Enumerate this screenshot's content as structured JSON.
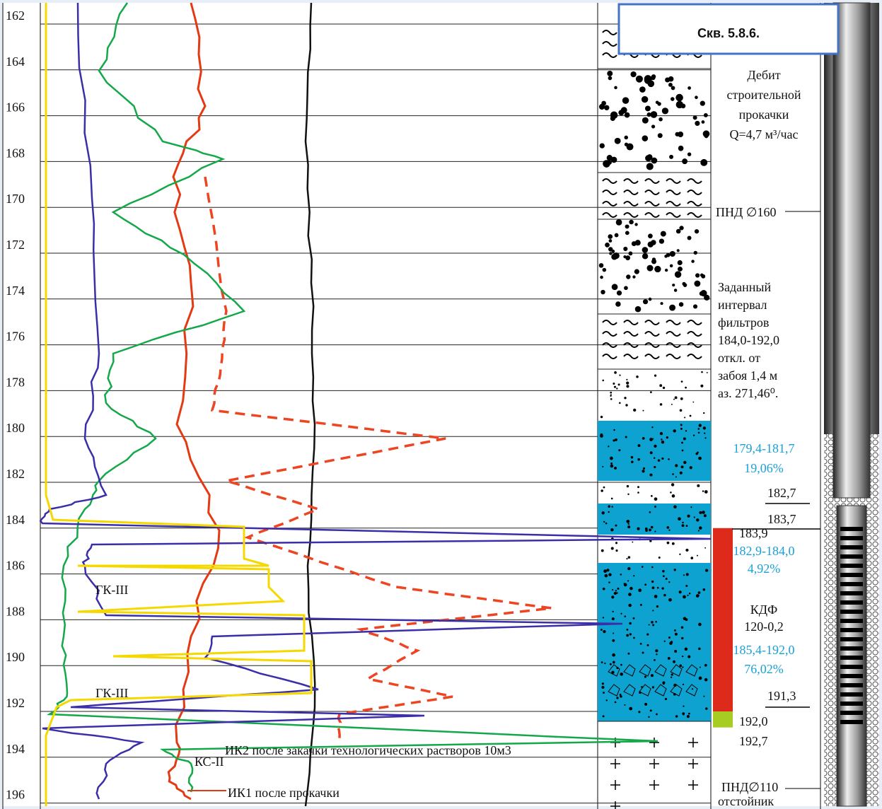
{
  "title": "Скв. 5.8.6.",
  "depth_ticks": [
    162,
    164,
    166,
    168,
    170,
    172,
    174,
    176,
    178,
    180,
    182,
    184,
    186,
    188,
    190,
    192,
    194,
    196
  ],
  "flow_note": [
    "Дебит",
    "строительной",
    "прокачки",
    "Q=4,7 м³/час"
  ],
  "casing_top": "ПНД  ∅160",
  "filter_note": [
    "Заданный",
    "интервал",
    "фильтров",
    "184,0-192,0",
    "откл. от",
    "забоя 1,4 м",
    "аз. 271,46⁰."
  ],
  "layers": [
    {
      "interval": "179,4-181,7",
      "percent": "19,06%"
    },
    {
      "interval": "182,9-184,0",
      "percent": "4,92%"
    },
    {
      "interval": "185,4-192,0",
      "percent": "76,02%"
    }
  ],
  "depth_marks": [
    "182,7",
    "183,7",
    "183,9",
    "191,3",
    "192,0",
    "192,7"
  ],
  "filter": [
    "КДФ",
    "120-0,2"
  ],
  "casing_bottom": [
    "ПНД∅110",
    "отстойник"
  ],
  "curve_labels": {
    "gk_upper": "ГК-III",
    "gk_lower": "ГК-III",
    "ks": "КС-II",
    "ik2": "ИК2 после закачки технологических растворов 10м3",
    "ik1": "ИК1 после прокачки"
  }
}
